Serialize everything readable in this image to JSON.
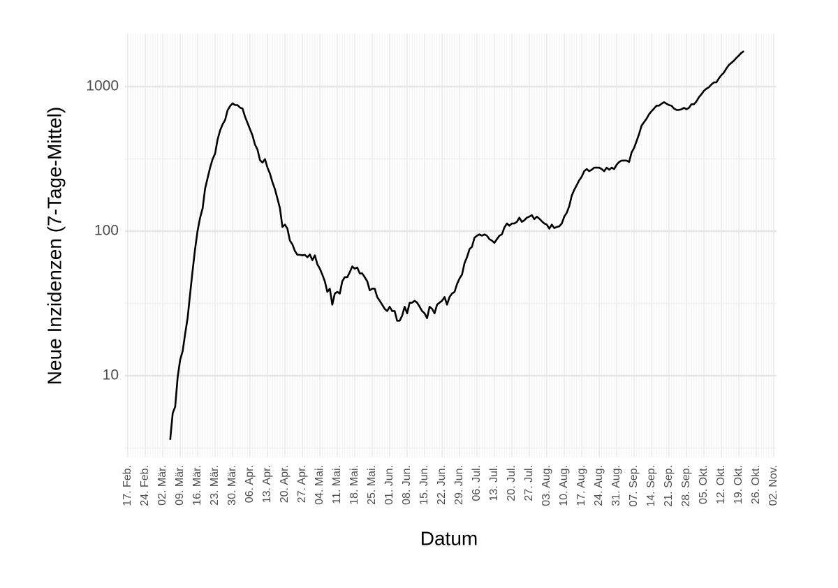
{
  "chart_data": {
    "type": "line",
    "x_label": "Datum",
    "y_label": "Neue Inzidenzen (7-Tage-Mittel)",
    "log_y": true,
    "grid": true,
    "color": "#000000",
    "ylim": [
      2.72,
      2330
    ],
    "yticks": [
      10,
      100,
      1000
    ],
    "y_minor_gridlines": [
      3.162,
      31.62,
      316.2
    ],
    "categories": [
      "17. Feb.",
      null,
      null,
      null,
      null,
      null,
      null,
      "24. Feb.",
      null,
      null,
      null,
      null,
      null,
      null,
      "02. Mär.",
      null,
      null,
      null,
      null,
      null,
      null,
      "09. Mär.",
      null,
      null,
      null,
      null,
      null,
      null,
      "16. Mär.",
      null,
      null,
      null,
      null,
      null,
      null,
      "23. Mär.",
      null,
      null,
      null,
      null,
      null,
      null,
      "30. Mär.",
      null,
      null,
      null,
      null,
      null,
      null,
      "06. Apr.",
      null,
      null,
      null,
      null,
      null,
      null,
      "13. Apr.",
      null,
      null,
      null,
      null,
      null,
      null,
      "20. Apr.",
      null,
      null,
      null,
      null,
      null,
      null,
      "27. Apr.",
      null,
      null,
      null,
      null,
      null,
      null,
      "04. Mai.",
      null,
      null,
      null,
      null,
      null,
      null,
      "11. Mai.",
      null,
      null,
      null,
      null,
      null,
      null,
      "18. Mai.",
      null,
      null,
      null,
      null,
      null,
      null,
      "25. Mai.",
      null,
      null,
      null,
      null,
      null,
      null,
      "01. Jun.",
      null,
      null,
      null,
      null,
      null,
      null,
      "08. Jun.",
      null,
      null,
      null,
      null,
      null,
      null,
      "15. Jun.",
      null,
      null,
      null,
      null,
      null,
      null,
      "22. Jun.",
      null,
      null,
      null,
      null,
      null,
      null,
      "29. Jun.",
      null,
      null,
      null,
      null,
      null,
      null,
      "06. Jul.",
      null,
      null,
      null,
      null,
      null,
      null,
      "13. Jul.",
      null,
      null,
      null,
      null,
      null,
      null,
      "20. Jul.",
      null,
      null,
      null,
      null,
      null,
      null,
      "27. Jul.",
      null,
      null,
      null,
      null,
      null,
      null,
      "03. Aug.",
      null,
      null,
      null,
      null,
      null,
      null,
      "10. Aug.",
      null,
      null,
      null,
      null,
      null,
      null,
      "17. Aug.",
      null,
      null,
      null,
      null,
      null,
      null,
      "24. Aug.",
      null,
      null,
      null,
      null,
      null,
      null,
      "31. Aug.",
      null,
      null,
      null,
      null,
      null,
      null,
      "07. Sep.",
      null,
      null,
      null,
      null,
      null,
      null,
      "14. Sep.",
      null,
      null,
      null,
      null,
      null,
      null,
      "21. Sep.",
      null,
      null,
      null,
      null,
      null,
      null,
      "28. Sep.",
      null,
      null,
      null,
      null,
      null,
      null,
      "05. Okt.",
      null,
      null,
      null,
      null,
      null,
      null,
      "12. Okt.",
      null,
      null,
      null,
      null,
      null,
      null,
      "19. Okt.",
      null,
      null,
      null,
      null,
      null,
      null,
      "26. Okt.",
      null,
      null,
      null,
      null,
      null,
      null,
      "02. Nov."
    ],
    "values": [
      null,
      null,
      null,
      null,
      null,
      null,
      null,
      null,
      null,
      null,
      null,
      null,
      null,
      null,
      null,
      null,
      null,
      3.6,
      5.5,
      6.1,
      9.8,
      12.9,
      14.8,
      19.5,
      25.2,
      37,
      53.6,
      75.7,
      101,
      124,
      144,
      197,
      233,
      275,
      315,
      344,
      430,
      497,
      548,
      587,
      685,
      733,
      766,
      745,
      745,
      716,
      705,
      620,
      561,
      507,
      459,
      397,
      367,
      310,
      298,
      315,
      275,
      250,
      218,
      195,
      168,
      144,
      107,
      111,
      104,
      86,
      81,
      73,
      68.6,
      68.6,
      68,
      68.6,
      66,
      69,
      63,
      68,
      59,
      55,
      50,
      45,
      38,
      40,
      31,
      37,
      38,
      37,
      45,
      48,
      48,
      52,
      57,
      55,
      56,
      51,
      51,
      48,
      45,
      39,
      40,
      40,
      35,
      33,
      31,
      29,
      28,
      30,
      28,
      28,
      24,
      24,
      26,
      30,
      27,
      32,
      32,
      33,
      32,
      30,
      28,
      27,
      25,
      30,
      29,
      27,
      31,
      32,
      33,
      35,
      31,
      35,
      37,
      38,
      43,
      47,
      50,
      60,
      66,
      75,
      78,
      90,
      93,
      95,
      93,
      95,
      93,
      88,
      86,
      83,
      88,
      93,
      95,
      106,
      113,
      109,
      113,
      113,
      116,
      124,
      116,
      119,
      124,
      126,
      129,
      121,
      126,
      122,
      117,
      113,
      111,
      104,
      111,
      105,
      107,
      108,
      113,
      126,
      134,
      149,
      176,
      193,
      208,
      225,
      238,
      260,
      269,
      260,
      266,
      275,
      275,
      275,
      269,
      260,
      275,
      266,
      275,
      269,
      288,
      301,
      308,
      308,
      308,
      301,
      351,
      376,
      420,
      470,
      537,
      568,
      600,
      644,
      676,
      705,
      738,
      738,
      762,
      780,
      762,
      745,
      738,
      705,
      690,
      690,
      697,
      713,
      697,
      713,
      755,
      755,
      790,
      845,
      885,
      935,
      967,
      990,
      1035,
      1070,
      1070,
      1140,
      1200,
      1250,
      1335,
      1410,
      1460,
      1510,
      1580,
      1640,
      1710,
      1760,
      null,
      null,
      null,
      null,
      null,
      null,
      null,
      null,
      null,
      null,
      null,
      null
    ]
  }
}
